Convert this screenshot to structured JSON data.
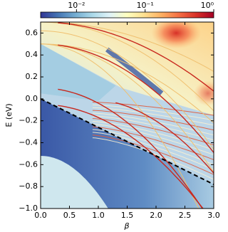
{
  "chart_data": {
    "type": "heatmap",
    "xlabel": "β",
    "ylabel": "E (eV)",
    "xlim": [
      0,
      3
    ],
    "ylim": [
      -1.0,
      0.7
    ],
    "xticks": [
      {
        "value": 0,
        "label": "0.0"
      },
      {
        "value": 0.5,
        "label": "0.5"
      },
      {
        "value": 1.0,
        "label": "1.0"
      },
      {
        "value": 1.5,
        "label": "1.5"
      },
      {
        "value": 2.0,
        "label": "2.0"
      },
      {
        "value": 2.5,
        "label": "2.5"
      },
      {
        "value": 3.0,
        "label": "3.0"
      }
    ],
    "yticks": [
      {
        "value": -1.0,
        "label": "−1.0"
      },
      {
        "value": -0.8,
        "label": "−0.8"
      },
      {
        "value": -0.6,
        "label": "−0.6"
      },
      {
        "value": -0.4,
        "label": "−0.4"
      },
      {
        "value": -0.2,
        "label": "−0.2"
      },
      {
        "value": 0,
        "label": "0.0"
      },
      {
        "value": 0.2,
        "label": "0.2"
      },
      {
        "value": 0.4,
        "label": "0.4"
      },
      {
        "value": 0.6,
        "label": "0.6"
      }
    ],
    "colorbar": {
      "log": true,
      "lim": [
        0.003,
        1
      ],
      "ticks": [
        {
          "value": 0.01,
          "label": "10⁻²"
        },
        {
          "value": 0.1,
          "label": "10⁻¹"
        },
        {
          "value": 1,
          "label": "10⁰"
        }
      ],
      "colors": [
        "#313695",
        "#4575b4",
        "#74add1",
        "#abd9e9",
        "#e0f3f8",
        "#ffffbf",
        "#fee090",
        "#fdae61",
        "#f46d43",
        "#d73027",
        "#a50026"
      ]
    },
    "x": [
      0,
      3
    ],
    "series": [
      {
        "values": [
          0,
          -0.78
        ],
        "color": "#000000",
        "dashed": true
      }
    ]
  }
}
